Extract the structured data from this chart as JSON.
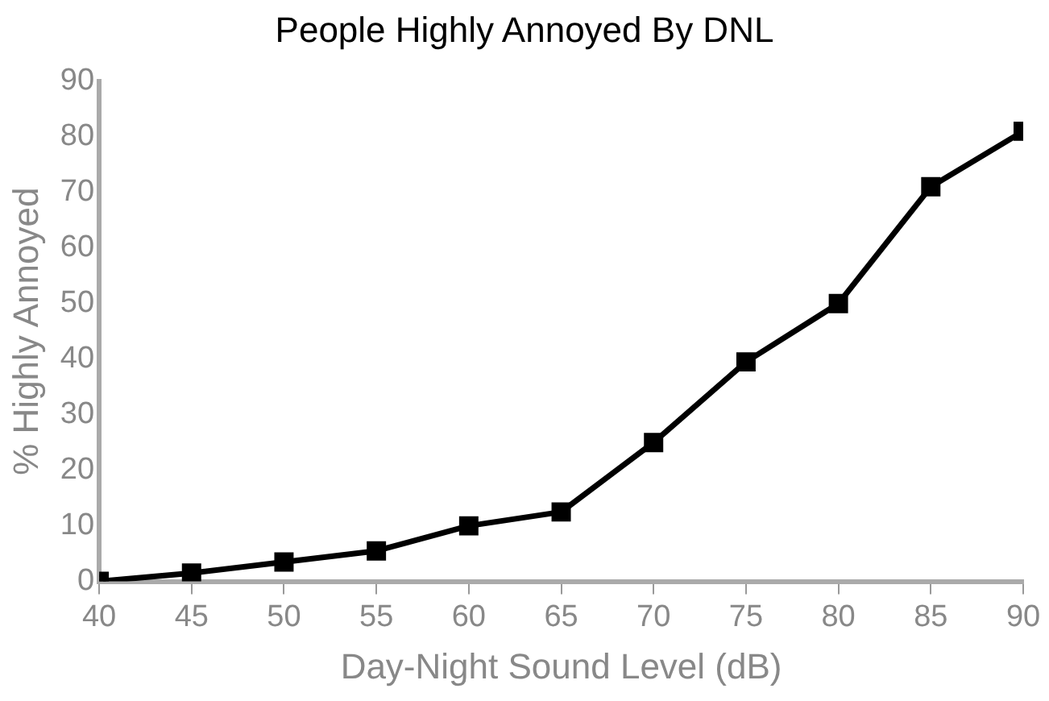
{
  "chart_data": {
    "type": "line",
    "title": "People Highly Annoyed By DNL",
    "xlabel": "Day-Night Sound Level (dB)",
    "ylabel": "% Highly Annoyed",
    "x": [
      40,
      45,
      50,
      55,
      60,
      65,
      70,
      75,
      80,
      85,
      90
    ],
    "series": [
      {
        "color": "#000000",
        "values": [
          0,
          1.5,
          3.5,
          5.5,
          10,
          12.5,
          25,
          39.5,
          50,
          71,
          81
        ]
      }
    ],
    "xlim": [
      40,
      90
    ],
    "xticks": [
      40,
      45,
      50,
      55,
      60,
      65,
      70,
      75,
      80,
      85,
      90
    ],
    "ylim": [
      0,
      90
    ],
    "yticks": [
      0,
      10,
      20,
      30,
      40,
      50,
      60,
      70,
      80,
      90
    ],
    "grid": false,
    "legend": false,
    "marker": "square",
    "line_style": "solid"
  }
}
